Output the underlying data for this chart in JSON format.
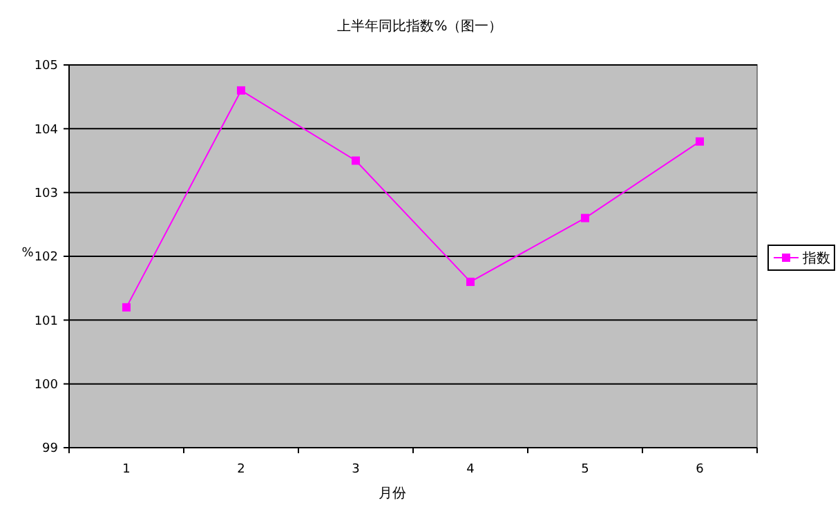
{
  "chart_data": {
    "type": "line",
    "title": "上半年同比指数%（图一）",
    "xlabel": "月份",
    "ylabel": "%",
    "categories": [
      "1",
      "2",
      "3",
      "4",
      "5",
      "6"
    ],
    "series": [
      {
        "name": "指数",
        "color": "#ff00ff",
        "values": [
          101.2,
          104.6,
          103.5,
          101.6,
          102.6,
          103.8
        ]
      }
    ],
    "ylim": [
      99,
      105
    ],
    "yticks": [
      99,
      100,
      101,
      102,
      103,
      104,
      105
    ],
    "grid": "y",
    "legend": "right",
    "marker": "square",
    "line_style": "solid"
  }
}
